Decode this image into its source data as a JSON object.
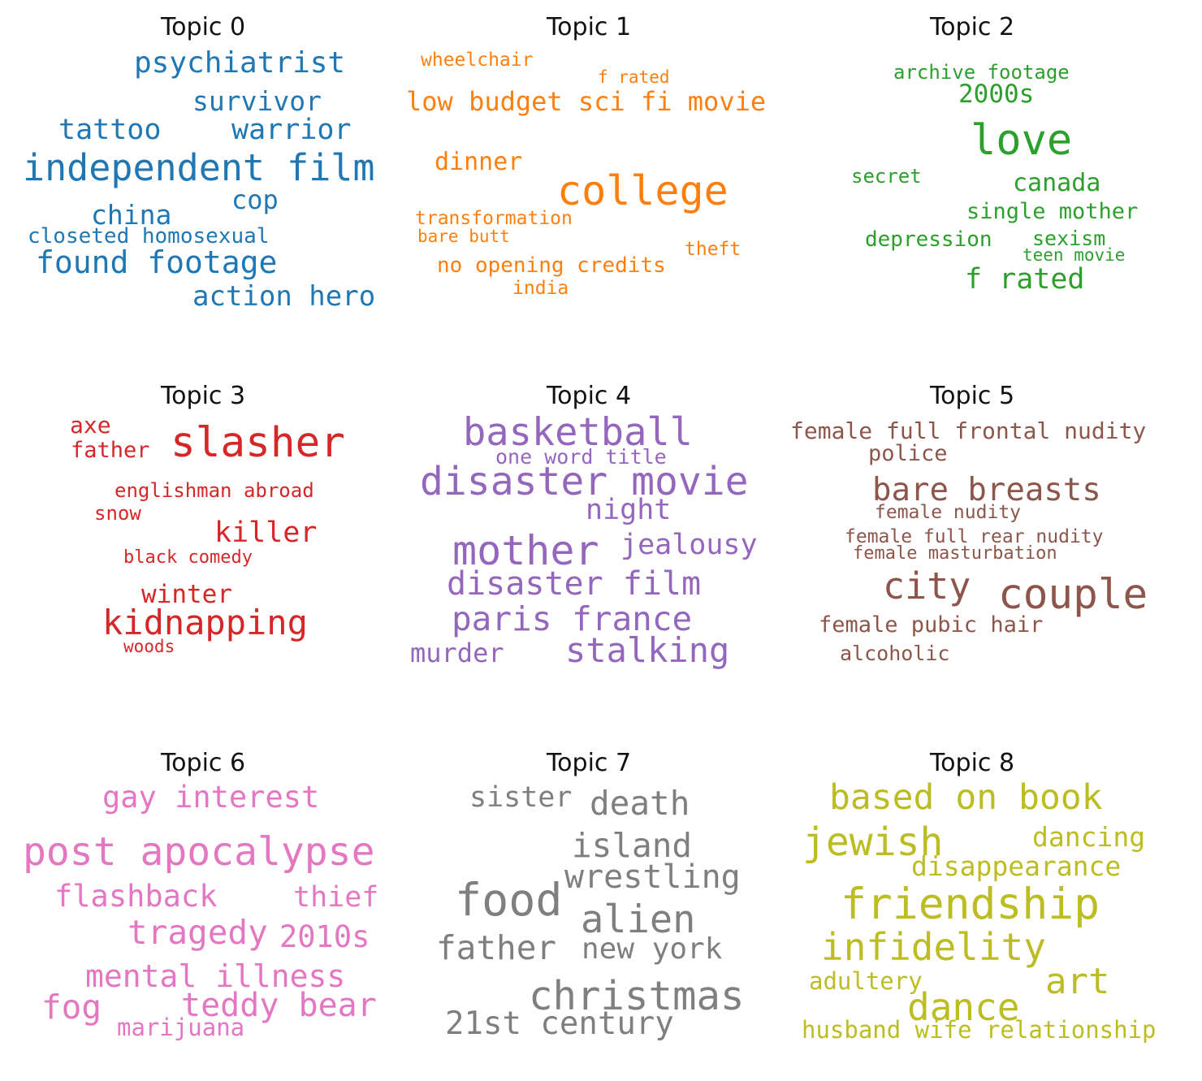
{
  "topics": [
    {
      "title": "Topic 0",
      "color": "#1f77b4",
      "words": [
        "psychiatrist",
        "survivor",
        "tattoo",
        "warrior",
        "independent film",
        "cop",
        "china",
        "closeted homosexual",
        "found footage",
        "action hero"
      ]
    },
    {
      "title": "Topic 1",
      "color": "#ff7f0e",
      "words": [
        "wheelchair",
        "f rated",
        "low budget sci fi movie",
        "dinner",
        "college",
        "transformation",
        "bare butt",
        "theft",
        "no opening credits",
        "india"
      ]
    },
    {
      "title": "Topic 2",
      "color": "#2ca02c",
      "words": [
        "archive footage",
        "2000s",
        "love",
        "secret",
        "canada",
        "single mother",
        "depression",
        "sexism",
        "teen movie",
        "f rated"
      ]
    },
    {
      "title": "Topic 3",
      "color": "#d62728",
      "words": [
        "axe",
        "father",
        "slasher",
        "englishman abroad",
        "snow",
        "killer",
        "black comedy",
        "winter",
        "kidnapping",
        "woods"
      ]
    },
    {
      "title": "Topic 4",
      "color": "#9467bd",
      "words": [
        "basketball",
        "one word title",
        "disaster movie",
        "night",
        "mother",
        "jealousy",
        "disaster film",
        "paris france",
        "murder",
        "stalking"
      ]
    },
    {
      "title": "Topic 5",
      "color": "#8c564b",
      "words": [
        "female full frontal nudity",
        "police",
        "bare breasts",
        "female nudity",
        "female full rear nudity",
        "female masturbation",
        "city",
        "couple",
        "female pubic hair",
        "alcoholic"
      ]
    },
    {
      "title": "Topic 6",
      "color": "#e377c2",
      "words": [
        "gay interest",
        "post apocalypse",
        "flashback",
        "thief",
        "tragedy",
        "2010s",
        "mental illness",
        "fog",
        "teddy bear",
        "marijuana"
      ]
    },
    {
      "title": "Topic 7",
      "color": "#7f7f7f",
      "words": [
        "sister",
        "death",
        "island",
        "wrestling",
        "food",
        "alien",
        "father",
        "new york",
        "christmas",
        "21st century"
      ]
    },
    {
      "title": "Topic 8",
      "color": "#bcbd22",
      "words": [
        "based on book",
        "jewish",
        "dancing",
        "disappearance",
        "friendship",
        "infidelity",
        "adultery",
        "art",
        "dance",
        "husband wife relationship"
      ]
    }
  ]
}
